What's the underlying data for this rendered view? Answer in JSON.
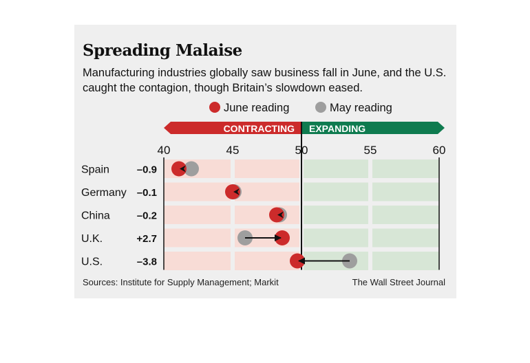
{
  "header": {
    "title": "Spreading Malaise",
    "subtitle": "Manufacturing industries globally saw business fall in June, and the U.S. caught the contagion, though Britain’s slowdown eased."
  },
  "footer": {
    "source": "Sources: Institute for Supply Management; Markit",
    "credit": "The Wall Street Journal"
  },
  "colors": {
    "june": "#cc2b2b",
    "may": "#9e9e9e",
    "contracting": "#cc2b2b",
    "expanding": "#0f7b4f",
    "contracting_band": "#f8dcd6",
    "expanding_band": "#d7e6d6",
    "panel_bg": "#efefef"
  },
  "chart_data": {
    "type": "scatter",
    "title": "Spreading Malaise",
    "subtitle": "Manufacturing industries globally saw business fall in June, and the U.S. caught the contagion, though Britain’s slowdown eased.",
    "xlabel": "",
    "ylabel": "",
    "xlim": [
      40,
      60
    ],
    "xticks": [
      40,
      45,
      50,
      55,
      60
    ],
    "threshold": 50,
    "zones": [
      {
        "label": "CONTRACTING",
        "range": [
          40,
          50
        ]
      },
      {
        "label": "EXPANDING",
        "range": [
          50,
          60
        ]
      }
    ],
    "legend": {
      "placement": "top-center",
      "entries": [
        {
          "name": "June reading",
          "color": "#cc2b2b"
        },
        {
          "name": "May reading",
          "color": "#9e9e9e"
        }
      ]
    },
    "categories": [
      "Spain",
      "Germany",
      "China",
      "U.K.",
      "U.S."
    ],
    "changes": [
      "–0.9",
      "–0.1",
      "–0.2",
      "+2.7",
      "–3.8"
    ],
    "series": [
      {
        "name": "June reading",
        "values": [
          41.1,
          45.0,
          48.2,
          48.6,
          49.7
        ]
      },
      {
        "name": "May reading",
        "values": [
          42.0,
          45.1,
          48.4,
          45.9,
          53.5
        ]
      }
    ],
    "grid": true
  }
}
